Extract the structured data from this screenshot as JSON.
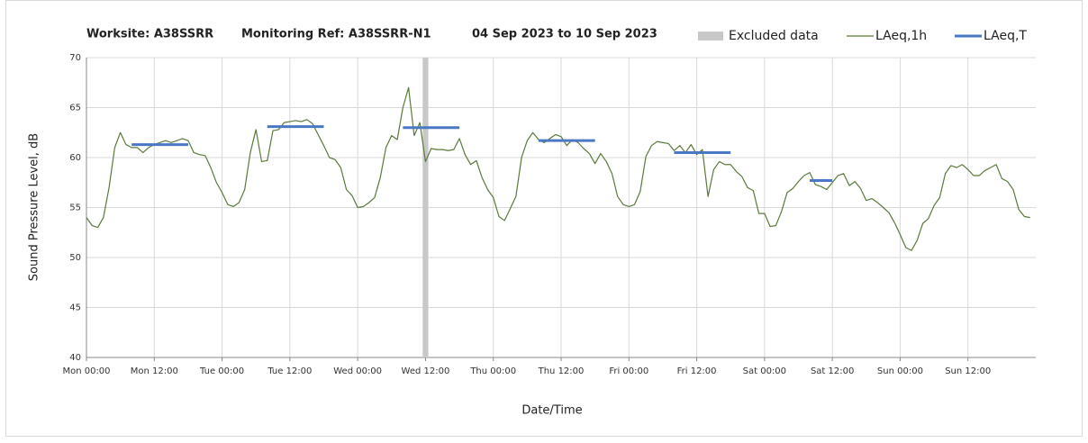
{
  "chart_data": {
    "type": "line",
    "title": "Worksite: A38SSRR",
    "monitoring_ref": "Monitoring Ref: A38SSRR-N1",
    "date_range": "04 Sep 2023 to 10 Sep 2023",
    "x_label": "Date/Time",
    "y_label": "Sound Pressure Level, dB",
    "ylim": [
      40,
      70
    ],
    "yticks": [
      40,
      45,
      50,
      55,
      60,
      65,
      70
    ],
    "grid": true,
    "legend": "top-right",
    "excluded": {
      "name": "Excluded data",
      "color": "#c8c8c8",
      "at": "Wed 12:00"
    },
    "categories": [
      "Mon 00:00",
      null,
      null,
      null,
      null,
      null,
      null,
      null,
      null,
      null,
      null,
      null,
      "Mon 12:00",
      null,
      null,
      null,
      null,
      null,
      null,
      null,
      null,
      null,
      null,
      null,
      "Tue 00:00",
      null,
      null,
      null,
      null,
      null,
      null,
      null,
      null,
      null,
      null,
      null,
      "Tue 12:00",
      null,
      null,
      null,
      null,
      null,
      null,
      null,
      null,
      null,
      null,
      null,
      "Wed 00:00",
      null,
      null,
      null,
      null,
      null,
      null,
      null,
      null,
      null,
      null,
      null,
      "Wed 12:00",
      null,
      null,
      null,
      null,
      null,
      null,
      null,
      null,
      null,
      null,
      null,
      "Thu 00:00",
      null,
      null,
      null,
      null,
      null,
      null,
      null,
      null,
      null,
      null,
      null,
      "Thu 12:00",
      null,
      null,
      null,
      null,
      null,
      null,
      null,
      null,
      null,
      null,
      null,
      "Fri 00:00",
      null,
      null,
      null,
      null,
      null,
      null,
      null,
      null,
      null,
      null,
      null,
      "Fri 12:00",
      null,
      null,
      null,
      null,
      null,
      null,
      null,
      null,
      null,
      null,
      null,
      "Sat 00:00",
      null,
      null,
      null,
      null,
      null,
      null,
      null,
      null,
      null,
      null,
      null,
      "Sat 12:00",
      null,
      null,
      null,
      null,
      null,
      null,
      null,
      null,
      null,
      null,
      null,
      "Sun 00:00",
      null,
      null,
      null,
      null,
      null,
      null,
      null,
      null,
      null,
      null,
      null,
      "Sun 12:00",
      null,
      null,
      null,
      null,
      null,
      null,
      null,
      null,
      null,
      null,
      null
    ],
    "series": [
      {
        "name": "LAeq,1h",
        "color": "#5a7a3a",
        "width": 1.2,
        "values": [
          54,
          53.2,
          53,
          54,
          57,
          61,
          62.5,
          61.3,
          61,
          61,
          60.5,
          61,
          61.3,
          61.5,
          61.7,
          61.5,
          61.7,
          61.9,
          61.7,
          60.5,
          60.3,
          60.2,
          59,
          57.5,
          56.5,
          55.3,
          55.1,
          55.5,
          56.8,
          60.5,
          62.8,
          59.6,
          59.7,
          62.7,
          62.8,
          63.5,
          63.6,
          63.7,
          63.6,
          63.8,
          63.4,
          62.3,
          61.2,
          60,
          59.8,
          59,
          56.8,
          56.2,
          55,
          55.1,
          55.5,
          56,
          58,
          61,
          62.2,
          61.8,
          65,
          67,
          62.2,
          63.5,
          59.6,
          60.9,
          60.8,
          60.8,
          60.7,
          60.8,
          61.9,
          60.3,
          59.3,
          59.7,
          58,
          56.8,
          56,
          54.1,
          53.7,
          54.9,
          56.1,
          60,
          61.7,
          62.5,
          61.8,
          61.5,
          61.9,
          62.3,
          62.1,
          61.2,
          61.8,
          61.5,
          60.9,
          60.4,
          59.4,
          60.4,
          59.6,
          58.4,
          56.1,
          55.3,
          55.1,
          55.3,
          56.6,
          60.1,
          61.2,
          61.6,
          61.5,
          61.4,
          60.7,
          61.2,
          60.5,
          61.3,
          60.3,
          60.8,
          56.1,
          58.8,
          59.6,
          59.3,
          59.3,
          58.6,
          58.1,
          57,
          56.7,
          54.4,
          54.4,
          53.1,
          53.2,
          54.6,
          56.5,
          56.9,
          57.6,
          58.2,
          58.5,
          57.3,
          57.1,
          56.8,
          57.5,
          58.2,
          58.4,
          57.2,
          57.6,
          56.9,
          55.7,
          55.9,
          55.5,
          55,
          54.5,
          53.5,
          52.3,
          51,
          50.7,
          51.7,
          53.4,
          53.9,
          55.2,
          56,
          58.4,
          59.2,
          59,
          59.3,
          58.8,
          58.2,
          58.2,
          58.7,
          59,
          59.3,
          57.9,
          57.6,
          56.8,
          54.8,
          54.1,
          54
        ]
      },
      {
        "name": "LAeq,T",
        "color": "#4a78c4",
        "width": 3,
        "values": [
          null,
          null,
          null,
          null,
          null,
          null,
          null,
          null,
          61.3,
          61.3,
          61.3,
          61.3,
          61.3,
          61.3,
          61.3,
          61.3,
          61.3,
          61.3,
          61.3,
          null,
          null,
          null,
          null,
          null,
          null,
          null,
          null,
          null,
          null,
          null,
          null,
          null,
          63.1,
          63.1,
          63.1,
          63.1,
          63.1,
          63.1,
          63.1,
          63.1,
          63.1,
          63.1,
          63.1,
          null,
          null,
          null,
          null,
          null,
          null,
          null,
          null,
          null,
          null,
          null,
          null,
          null,
          63.0,
          63.0,
          63.0,
          63.0,
          63.0,
          63.0,
          63.0,
          63.0,
          63.0,
          63.0,
          63.0,
          null,
          null,
          null,
          null,
          null,
          null,
          null,
          null,
          null,
          null,
          null,
          null,
          null,
          61.7,
          61.7,
          61.7,
          61.7,
          61.7,
          61.7,
          61.7,
          61.7,
          61.7,
          61.7,
          61.7,
          null,
          null,
          null,
          null,
          null,
          null,
          null,
          null,
          null,
          null,
          null,
          null,
          null,
          60.5,
          60.5,
          60.5,
          60.5,
          60.5,
          60.5,
          60.5,
          60.5,
          60.5,
          60.5,
          60.5,
          null,
          null,
          null,
          null,
          null,
          null,
          null,
          null,
          null,
          null,
          null,
          null,
          null,
          57.7,
          57.7,
          57.7,
          57.7,
          57.7,
          null,
          null,
          null,
          null,
          null,
          null,
          null,
          null,
          null,
          null,
          null,
          null,
          null,
          null,
          null,
          null,
          null,
          null,
          null,
          null,
          null,
          null,
          null,
          null,
          null,
          null,
          null,
          null,
          null,
          null,
          null,
          null,
          null,
          null,
          null
        ]
      }
    ]
  }
}
